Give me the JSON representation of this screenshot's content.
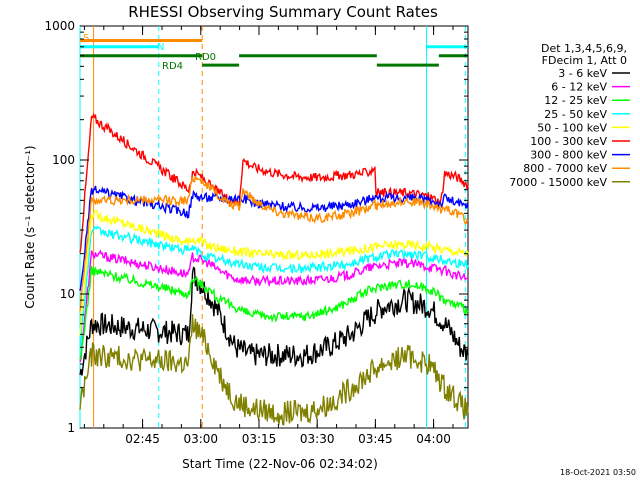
{
  "chart_data": {
    "type": "line",
    "title": "RHESSI Observing Summary Count Rates",
    "xlabel": "Start Time (22-Nov-06 02:34:02)",
    "ylabel": "Count Rate (s⁻¹ detector⁻¹)",
    "y_scale": "log",
    "ylim": [
      1,
      1000
    ],
    "yticks": [
      1,
      10,
      100,
      1000
    ],
    "xlim_minutes": [
      0,
      100
    ],
    "xticks": [
      {
        "label": "02:45",
        "t": 16.13
      },
      {
        "label": "03:00",
        "t": 31.13
      },
      {
        "label": "03:15",
        "t": 46.13
      },
      {
        "label": "03:30",
        "t": 61.13
      },
      {
        "label": "03:45",
        "t": 76.13
      },
      {
        "label": "04:00",
        "t": 91.13
      }
    ],
    "legend_header": [
      "Det 1,3,4,5,6,9,",
      "FDecim 1, Att 0"
    ],
    "legend_position": "right",
    "timestamp": "18-Oct-2021 03:50",
    "series": [
      {
        "name": "3 - 6 keV",
        "color": "#000000",
        "points": [
          [
            0,
            2.5
          ],
          [
            3,
            6
          ],
          [
            28,
            5
          ],
          [
            29,
            14
          ],
          [
            31,
            12
          ],
          [
            33,
            10
          ],
          [
            36,
            7
          ],
          [
            40,
            4
          ],
          [
            44,
            3.5
          ],
          [
            50,
            3.5
          ],
          [
            58,
            3.5
          ],
          [
            64,
            4
          ],
          [
            70,
            5
          ],
          [
            74,
            6.5
          ],
          [
            78,
            8
          ],
          [
            84,
            9
          ],
          [
            90,
            8
          ],
          [
            94,
            6
          ],
          [
            96,
            5
          ],
          [
            98,
            4
          ],
          [
            100,
            3.5
          ]
        ]
      },
      {
        "name": "6 - 12 keV",
        "color": "#ff00ff",
        "points": [
          [
            0,
            3
          ],
          [
            3,
            20
          ],
          [
            28,
            14
          ],
          [
            29,
            19
          ],
          [
            31,
            18
          ],
          [
            33,
            17
          ],
          [
            36,
            15
          ],
          [
            40,
            13
          ],
          [
            45,
            12.5
          ],
          [
            52,
            12.5
          ],
          [
            58,
            12.5
          ],
          [
            64,
            13
          ],
          [
            70,
            14
          ],
          [
            74,
            15.5
          ],
          [
            78,
            16.5
          ],
          [
            84,
            17
          ],
          [
            90,
            16
          ],
          [
            94,
            15
          ],
          [
            96,
            14
          ],
          [
            98,
            13.5
          ],
          [
            100,
            13
          ]
        ]
      },
      {
        "name": "12 - 25 keV",
        "color": "#00ff00",
        "points": [
          [
            0,
            3
          ],
          [
            3,
            15
          ],
          [
            28,
            10
          ],
          [
            29,
            13
          ],
          [
            31,
            12
          ],
          [
            33,
            11
          ],
          [
            36,
            9
          ],
          [
            40,
            8
          ],
          [
            44,
            7
          ],
          [
            50,
            6.8
          ],
          [
            58,
            6.8
          ],
          [
            64,
            7.5
          ],
          [
            70,
            9
          ],
          [
            74,
            10.5
          ],
          [
            78,
            11.5
          ],
          [
            84,
            12
          ],
          [
            90,
            11
          ],
          [
            94,
            9
          ],
          [
            96,
            8.5
          ],
          [
            98,
            8
          ],
          [
            100,
            7.5
          ]
        ]
      },
      {
        "name": "25 - 50 keV",
        "color": "#00ffff",
        "points": [
          [
            0,
            4
          ],
          [
            3,
            30
          ],
          [
            28,
            21
          ],
          [
            29,
            22
          ],
          [
            31,
            20
          ],
          [
            33,
            19
          ],
          [
            36,
            18
          ],
          [
            40,
            17
          ],
          [
            45,
            16
          ],
          [
            52,
            15.5
          ],
          [
            58,
            15.5
          ],
          [
            64,
            16
          ],
          [
            70,
            17
          ],
          [
            74,
            18.5
          ],
          [
            78,
            19.5
          ],
          [
            84,
            20
          ],
          [
            90,
            19
          ],
          [
            94,
            18
          ],
          [
            96,
            17.5
          ],
          [
            98,
            17
          ],
          [
            100,
            16.5
          ]
        ]
      },
      {
        "name": "50 - 100 keV",
        "color": "#ffff00",
        "points": [
          [
            0,
            5
          ],
          [
            3,
            40
          ],
          [
            28,
            24
          ],
          [
            29,
            26
          ],
          [
            31,
            25
          ],
          [
            33,
            23
          ],
          [
            36,
            22
          ],
          [
            40,
            21
          ],
          [
            45,
            20
          ],
          [
            52,
            19.5
          ],
          [
            58,
            19.5
          ],
          [
            64,
            20
          ],
          [
            70,
            21
          ],
          [
            74,
            22
          ],
          [
            78,
            23
          ],
          [
            84,
            23.5
          ],
          [
            90,
            22.5
          ],
          [
            94,
            21.5
          ],
          [
            96,
            21
          ],
          [
            98,
            20.5
          ],
          [
            100,
            20
          ]
        ]
      },
      {
        "name": "100 - 300 keV",
        "color": "#ff0000",
        "points": [
          [
            0,
            20
          ],
          [
            3,
            210
          ],
          [
            28,
            60
          ],
          [
            29,
            80
          ],
          [
            31,
            76
          ],
          [
            34,
            62
          ],
          [
            38,
            52
          ],
          [
            41,
            48
          ],
          [
            42,
            100
          ],
          [
            45,
            88
          ],
          [
            50,
            80
          ],
          [
            56,
            75
          ],
          [
            62,
            74
          ],
          [
            68,
            77
          ],
          [
            74,
            80
          ],
          [
            76,
            88
          ],
          [
            76.3,
            57
          ],
          [
            80,
            57
          ],
          [
            84,
            57
          ],
          [
            88,
            55
          ],
          [
            91,
            52
          ],
          [
            93,
            48
          ],
          [
            94,
            80
          ],
          [
            97,
            75
          ],
          [
            100,
            65
          ]
        ]
      },
      {
        "name": "300 - 800 keV",
        "color": "#0000ff",
        "points": [
          [
            0,
            10
          ],
          [
            3,
            60
          ],
          [
            28,
            40
          ],
          [
            29,
            55
          ],
          [
            31,
            53
          ],
          [
            34,
            52
          ],
          [
            38,
            52
          ],
          [
            41,
            52
          ],
          [
            42,
            52
          ],
          [
            45,
            48
          ],
          [
            50,
            46
          ],
          [
            56,
            44
          ],
          [
            62,
            44
          ],
          [
            68,
            46
          ],
          [
            74,
            50
          ],
          [
            76,
            55
          ],
          [
            76.3,
            52
          ],
          [
            80,
            52
          ],
          [
            84,
            52
          ],
          [
            88,
            51
          ],
          [
            91,
            49
          ],
          [
            93,
            47
          ],
          [
            94,
            52
          ],
          [
            97,
            48
          ],
          [
            100,
            44
          ]
        ]
      },
      {
        "name": "800 - 7000 keV",
        "color": "#ff8c00",
        "points": [
          [
            0,
            8
          ],
          [
            3,
            50
          ],
          [
            28,
            50
          ],
          [
            29,
            75
          ],
          [
            31,
            72
          ],
          [
            34,
            60
          ],
          [
            38,
            48
          ],
          [
            41,
            44
          ],
          [
            42,
            60
          ],
          [
            45,
            50
          ],
          [
            50,
            42
          ],
          [
            56,
            38
          ],
          [
            62,
            37
          ],
          [
            68,
            39
          ],
          [
            74,
            43
          ],
          [
            76,
            48
          ],
          [
            76.3,
            45
          ],
          [
            80,
            48
          ],
          [
            84,
            50
          ],
          [
            88,
            48
          ],
          [
            91,
            45
          ],
          [
            93,
            42
          ],
          [
            94,
            45
          ],
          [
            97,
            40
          ],
          [
            100,
            35
          ]
        ]
      },
      {
        "name": "7000 - 15000 keV",
        "color": "#808000",
        "points": [
          [
            0,
            1.5
          ],
          [
            3,
            3.5
          ],
          [
            28,
            3
          ],
          [
            29,
            6
          ],
          [
            31,
            5
          ],
          [
            33,
            4
          ],
          [
            36,
            2.5
          ],
          [
            40,
            1.6
          ],
          [
            44,
            1.4
          ],
          [
            50,
            1.3
          ],
          [
            58,
            1.3
          ],
          [
            64,
            1.5
          ],
          [
            70,
            2
          ],
          [
            74,
            2.5
          ],
          [
            78,
            3
          ],
          [
            84,
            3.5
          ],
          [
            90,
            3
          ],
          [
            94,
            2
          ],
          [
            96,
            1.8
          ],
          [
            98,
            1.5
          ],
          [
            100,
            1.3
          ]
        ]
      }
    ],
    "state_bars": [
      {
        "label": "S",
        "color": "#ff8c00",
        "level": 780,
        "segments": [
          [
            0,
            31.5
          ]
        ]
      },
      {
        "label": "N",
        "color": "#00ffff",
        "level": 700,
        "segments": [
          [
            0,
            20.3
          ],
          [
            89.3,
            100
          ]
        ]
      },
      {
        "label": "RD0",
        "color": "#007700",
        "level": 600,
        "segments": [
          [
            0,
            31.5
          ],
          [
            41,
            76.5
          ],
          [
            92.5,
            100
          ]
        ]
      },
      {
        "label": "RD4",
        "color": "#007700",
        "level": 510,
        "segments": [
          [
            31.5,
            41
          ],
          [
            76.5,
            92.5
          ]
        ]
      }
    ],
    "vlines": [
      {
        "t": 0,
        "color": "#00ffff",
        "style": "solid"
      },
      {
        "t": 3.5,
        "color": "#ff8c00",
        "style": "solid"
      },
      {
        "t": 20.3,
        "color": "#00ffff",
        "style": "dashed"
      },
      {
        "t": 31.5,
        "color": "#ff8c00",
        "style": "dashed"
      },
      {
        "t": 89.3,
        "color": "#00ffff",
        "style": "solid"
      },
      {
        "t": 99.3,
        "color": "#00ffff",
        "style": "dashed"
      }
    ]
  }
}
